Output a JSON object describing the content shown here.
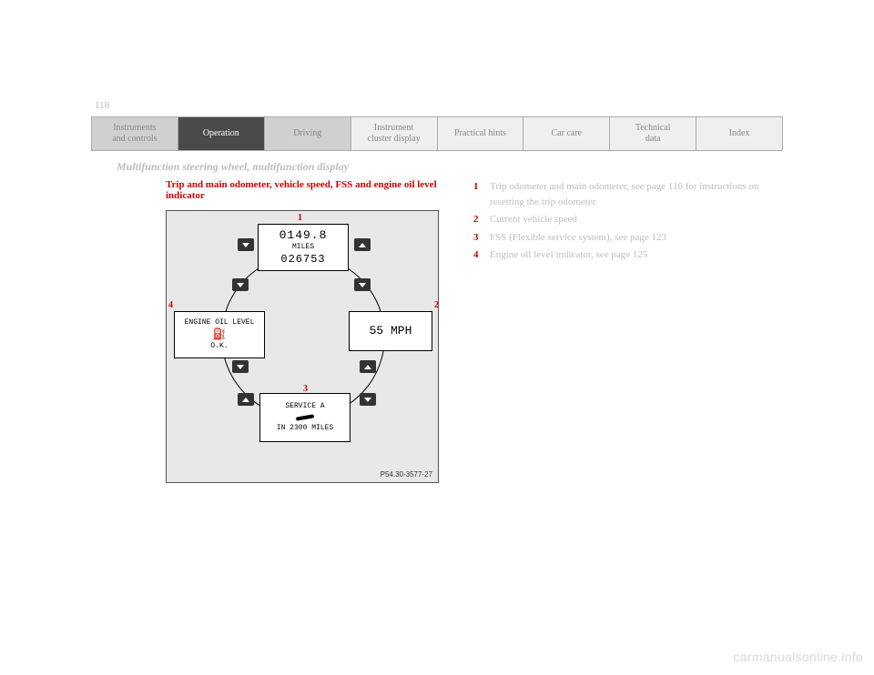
{
  "page_number": "118",
  "tabs": [
    {
      "label": "Instruments\nand controls",
      "style": "dark"
    },
    {
      "label": "Operation",
      "style": "active"
    },
    {
      "label": "Driving",
      "style": "dark"
    },
    {
      "label": "Instrument\ncluster display",
      "style": "normal"
    },
    {
      "label": "Practical hints",
      "style": "normal"
    },
    {
      "label": "Car care",
      "style": "normal"
    },
    {
      "label": "Technical\ndata",
      "style": "normal"
    },
    {
      "label": "Index",
      "style": "normal"
    }
  ],
  "section_title": "Multifunction steering wheel, multifunction display",
  "heading": "Trip and main odometer, vehicle speed, FSS and engine oil level indicator",
  "diagram": {
    "ref": "P54.30-3577-27",
    "top_box": {
      "line1": "0149.8",
      "line2": "MILES",
      "line3": "026753"
    },
    "right_box": {
      "line1": "55 MPH"
    },
    "bottom_box": {
      "line1": "SERVICE A",
      "line3": "IN 2300 MILES"
    },
    "left_box": {
      "line1": "ENGINE OIL LEVEL",
      "line3": "O.K."
    },
    "labels": {
      "1": "1",
      "2": "2",
      "3": "3",
      "4": "4"
    }
  },
  "legend": [
    {
      "num": "1",
      "text": "Trip odometer and main odometer, see page 116 for instructions on resetting the trip odometer"
    },
    {
      "num": "2",
      "text": "Current vehicle speed"
    },
    {
      "num": "3",
      "text": "FSS (Flexible service system), see page 123"
    },
    {
      "num": "4",
      "text": "Engine oil level indicator, see page 125"
    }
  ],
  "watermark": "carmanualsonline.info"
}
